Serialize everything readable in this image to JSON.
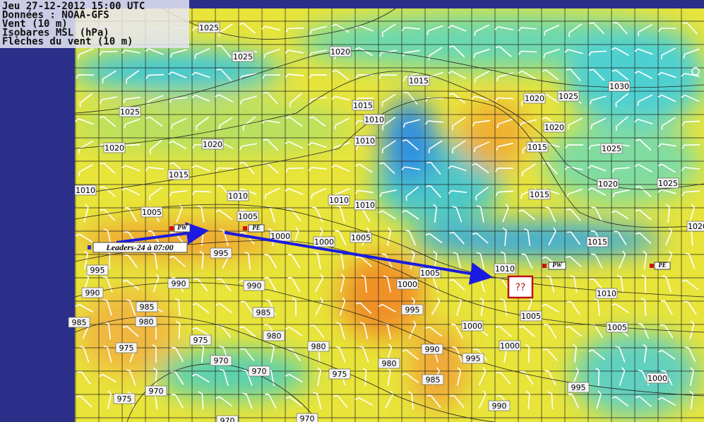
{
  "header": {
    "lines": [
      "Jeu 27-12-2012 15:00 UTC",
      "Données : NOAA-GFS",
      "Vent (10 m)",
      "Isobares MSL (hPa)",
      "Flèches du vent (10 m)"
    ]
  },
  "isobar_labels": [
    "1025",
    "1025",
    "1020",
    "1015",
    "1020",
    "1025",
    "1030",
    "1025",
    "1015",
    "1010",
    "1020",
    "1010",
    "1015",
    "1025",
    "1020",
    "1020",
    "1015",
    "1020",
    "1025",
    "1010",
    "1010",
    "1010",
    "1010",
    "1015",
    "1005",
    "1005",
    "1020",
    "1000",
    "1000",
    "1005",
    "1015",
    "995",
    "995",
    "1005",
    "1010",
    "990",
    "990",
    "990",
    "1000",
    "1010",
    "985",
    "985",
    "995",
    "1005",
    "985",
    "980",
    "1000",
    "1005",
    "980",
    "975",
    "975",
    "980",
    "990",
    "1000",
    "970",
    "970",
    "980",
    "975",
    "995",
    "985",
    "970",
    "975",
    "995",
    "1000",
    "990",
    "970",
    "970"
  ],
  "markers": {
    "leaders": "Leaders-24 à 07:00",
    "pw1": "PW",
    "pe1": "PE",
    "pw2": "PW",
    "pe2": "PE",
    "unknown": "??"
  }
}
